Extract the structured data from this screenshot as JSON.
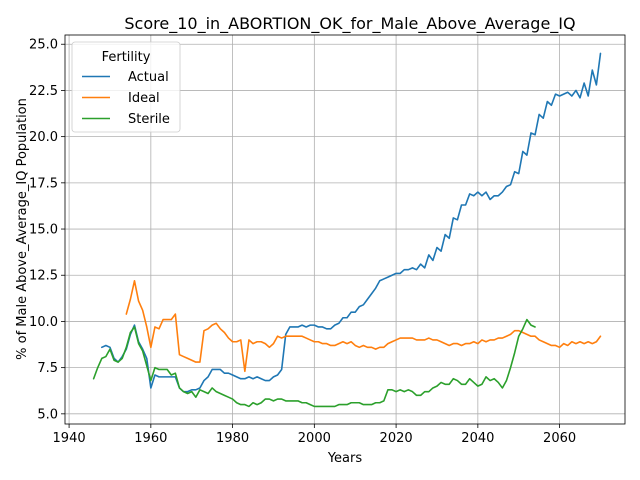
{
  "chart_data": {
    "type": "line",
    "title": "Score_10_in_ABORTION_OK_for_Male_Above_Average_IQ",
    "xlabel": "Years",
    "ylabel": "% of Male Above_Average_IQ Population",
    "xlim": [
      1939,
      2076
    ],
    "ylim": [
      4.45,
      25.5
    ],
    "xticks": [
      1940,
      1960,
      1980,
      2000,
      2020,
      2040,
      2060
    ],
    "yticks": [
      5.0,
      7.5,
      10.0,
      12.5,
      15.0,
      17.5,
      20.0,
      22.5,
      25.0
    ],
    "ytick_labels": [
      "5.0",
      "7.5",
      "10.0",
      "12.5",
      "15.0",
      "17.5",
      "20.0",
      "22.5",
      "25.0"
    ],
    "grid": true,
    "legend": {
      "title": "Fertility",
      "position": "top-left"
    },
    "series": [
      {
        "name": "Actual",
        "color": "#1f77b4",
        "x": [
          1948,
          1949,
          1950,
          1951,
          1952,
          1953,
          1954,
          1955,
          1956,
          1957,
          1958,
          1959,
          1960,
          1961,
          1962,
          1963,
          1964,
          1965,
          1966,
          1967,
          1968,
          1969,
          1970,
          1971,
          1972,
          1973,
          1974,
          1975,
          1976,
          1977,
          1978,
          1979,
          1980,
          1981,
          1982,
          1983,
          1984,
          1985,
          1986,
          1987,
          1988,
          1989,
          1990,
          1991,
          1992,
          1993,
          1994,
          1995,
          1996,
          1997,
          1998,
          1999,
          2000,
          2001,
          2002,
          2003,
          2004,
          2005,
          2006,
          2007,
          2008,
          2009,
          2010,
          2011,
          2012,
          2013,
          2014,
          2015,
          2016,
          2017,
          2018,
          2019,
          2020,
          2021,
          2022,
          2023,
          2024,
          2025,
          2026,
          2027,
          2028,
          2029,
          2030,
          2031,
          2032,
          2033,
          2034,
          2035,
          2036,
          2037,
          2038,
          2039,
          2040,
          2041,
          2042,
          2043,
          2044,
          2045,
          2046,
          2047,
          2048,
          2049,
          2050,
          2051,
          2052,
          2053,
          2054,
          2055,
          2056,
          2057,
          2058,
          2059,
          2060,
          2061,
          2062,
          2063,
          2064,
          2065,
          2066,
          2067,
          2068,
          2069,
          2070
        ],
        "values": [
          8.6,
          8.7,
          8.6,
          8.0,
          7.8,
          8.1,
          8.5,
          9.3,
          9.8,
          8.9,
          8.5,
          8.0,
          6.4,
          7.1,
          7.0,
          7.0,
          7.0,
          7.0,
          7.0,
          6.4,
          6.2,
          6.2,
          6.3,
          6.3,
          6.4,
          6.8,
          7.0,
          7.4,
          7.4,
          7.4,
          7.2,
          7.2,
          7.1,
          7.0,
          6.9,
          6.9,
          7.0,
          6.9,
          7.0,
          6.9,
          6.8,
          6.8,
          7.0,
          7.1,
          7.4,
          9.3,
          9.7,
          9.7,
          9.7,
          9.8,
          9.7,
          9.8,
          9.8,
          9.7,
          9.7,
          9.6,
          9.6,
          9.8,
          9.9,
          10.2,
          10.2,
          10.5,
          10.5,
          10.8,
          10.9,
          11.2,
          11.5,
          11.8,
          12.2,
          12.3,
          12.4,
          12.5,
          12.6,
          12.6,
          12.8,
          12.8,
          12.9,
          12.8,
          13.1,
          12.9,
          13.6,
          13.3,
          14.0,
          13.8,
          14.7,
          14.5,
          15.6,
          15.5,
          16.3,
          16.3,
          16.9,
          16.8,
          17.0,
          16.8,
          17.0,
          16.6,
          16.8,
          16.8,
          17.0,
          17.3,
          17.4,
          18.1,
          18.0,
          19.2,
          19.0,
          20.2,
          20.1,
          21.2,
          21.0,
          21.9,
          21.7,
          22.3,
          22.2,
          22.3,
          22.4,
          22.2,
          22.5,
          22.1,
          22.9,
          22.2,
          23.6,
          22.8,
          24.5
        ]
      },
      {
        "name": "Ideal",
        "color": "#ff7f0e",
        "x": [
          1954,
          1955,
          1956,
          1957,
          1958,
          1959,
          1960,
          1961,
          1962,
          1963,
          1964,
          1965,
          1966,
          1967,
          1968,
          1969,
          1970,
          1971,
          1972,
          1973,
          1974,
          1975,
          1976,
          1977,
          1978,
          1979,
          1980,
          1981,
          1982,
          1983,
          1984,
          1985,
          1986,
          1987,
          1988,
          1989,
          1990,
          1991,
          1992,
          1993,
          1994,
          1995,
          1996,
          1997,
          1998,
          1999,
          2000,
          2001,
          2002,
          2003,
          2004,
          2005,
          2006,
          2007,
          2008,
          2009,
          2010,
          2011,
          2012,
          2013,
          2014,
          2015,
          2016,
          2017,
          2018,
          2019,
          2020,
          2021,
          2022,
          2023,
          2024,
          2025,
          2026,
          2027,
          2028,
          2029,
          2030,
          2031,
          2032,
          2033,
          2034,
          2035,
          2036,
          2037,
          2038,
          2039,
          2040,
          2041,
          2042,
          2043,
          2044,
          2045,
          2046,
          2047,
          2048,
          2049,
          2050,
          2051,
          2052,
          2053,
          2054,
          2055,
          2056,
          2057,
          2058,
          2059,
          2060,
          2061,
          2062,
          2063,
          2064,
          2065,
          2066,
          2067,
          2068,
          2069,
          2070
        ],
        "values": [
          10.4,
          11.2,
          12.2,
          11.1,
          10.6,
          9.7,
          8.6,
          9.7,
          9.6,
          10.1,
          10.1,
          10.1,
          10.4,
          8.2,
          8.1,
          8.0,
          7.9,
          7.8,
          7.8,
          9.5,
          9.6,
          9.8,
          9.9,
          9.6,
          9.4,
          9.1,
          8.9,
          8.9,
          9.0,
          7.3,
          9.0,
          8.8,
          8.9,
          8.9,
          8.8,
          8.6,
          8.8,
          9.2,
          9.1,
          9.2,
          9.2,
          9.2,
          9.2,
          9.2,
          9.1,
          9.0,
          8.9,
          8.9,
          8.8,
          8.8,
          8.7,
          8.7,
          8.8,
          8.9,
          8.8,
          8.9,
          8.7,
          8.6,
          8.7,
          8.6,
          8.6,
          8.5,
          8.6,
          8.6,
          8.8,
          8.9,
          9.0,
          9.1,
          9.1,
          9.1,
          9.1,
          9.0,
          9.0,
          9.0,
          9.1,
          9.0,
          9.0,
          8.9,
          8.8,
          8.7,
          8.8,
          8.8,
          8.7,
          8.8,
          8.8,
          8.9,
          8.8,
          9.0,
          8.9,
          9.0,
          9.0,
          9.1,
          9.1,
          9.2,
          9.3,
          9.5,
          9.5,
          9.4,
          9.3,
          9.2,
          9.2,
          9.0,
          8.9,
          8.8,
          8.7,
          8.7,
          8.6,
          8.8,
          8.7,
          8.9,
          8.8,
          8.9,
          8.8,
          8.9,
          8.8,
          8.9,
          9.2
        ]
      },
      {
        "name": "Sterile",
        "color": "#2ca02c",
        "x": [
          1946,
          1947,
          1948,
          1949,
          1950,
          1951,
          1952,
          1953,
          1954,
          1955,
          1956,
          1957,
          1958,
          1959,
          1960,
          1961,
          1962,
          1963,
          1964,
          1965,
          1966,
          1967,
          1968,
          1969,
          1970,
          1971,
          1972,
          1973,
          1974,
          1975,
          1976,
          1977,
          1978,
          1979,
          1980,
          1981,
          1982,
          1983,
          1984,
          1985,
          1986,
          1987,
          1988,
          1989,
          1990,
          1991,
          1992,
          1993,
          1994,
          1995,
          1996,
          1997,
          1998,
          1999,
          2000,
          2001,
          2002,
          2003,
          2004,
          2005,
          2006,
          2007,
          2008,
          2009,
          2010,
          2011,
          2012,
          2013,
          2014,
          2015,
          2016,
          2017,
          2018,
          2019,
          2020,
          2021,
          2022,
          2023,
          2024,
          2025,
          2026,
          2027,
          2028,
          2029,
          2030,
          2031,
          2032,
          2033,
          2034,
          2035,
          2036,
          2037,
          2038,
          2039,
          2040,
          2041,
          2042,
          2043,
          2044,
          2045,
          2046,
          2047,
          2048,
          2049,
          2050,
          2051,
          2052,
          2053,
          2054
        ],
        "values": [
          6.9,
          7.5,
          8.0,
          8.1,
          8.5,
          7.9,
          7.8,
          8.0,
          8.6,
          9.4,
          9.7,
          8.8,
          8.4,
          7.6,
          6.8,
          7.5,
          7.4,
          7.4,
          7.4,
          7.1,
          7.2,
          6.4,
          6.2,
          6.1,
          6.2,
          5.9,
          6.3,
          6.2,
          6.1,
          6.4,
          6.2,
          6.1,
          6.0,
          5.9,
          5.8,
          5.6,
          5.5,
          5.5,
          5.4,
          5.6,
          5.5,
          5.6,
          5.8,
          5.8,
          5.7,
          5.8,
          5.8,
          5.7,
          5.7,
          5.7,
          5.7,
          5.6,
          5.6,
          5.5,
          5.4,
          5.4,
          5.4,
          5.4,
          5.4,
          5.4,
          5.5,
          5.5,
          5.5,
          5.6,
          5.6,
          5.6,
          5.5,
          5.5,
          5.5,
          5.6,
          5.6,
          5.7,
          6.3,
          6.3,
          6.2,
          6.3,
          6.2,
          6.3,
          6.2,
          6.0,
          6.0,
          6.2,
          6.2,
          6.4,
          6.5,
          6.7,
          6.6,
          6.6,
          6.9,
          6.8,
          6.6,
          6.6,
          6.9,
          6.7,
          6.5,
          6.6,
          7.0,
          6.8,
          6.9,
          6.7,
          6.4,
          6.8,
          7.5,
          8.3,
          9.2,
          9.6,
          10.1,
          9.8,
          9.7
        ]
      }
    ]
  }
}
